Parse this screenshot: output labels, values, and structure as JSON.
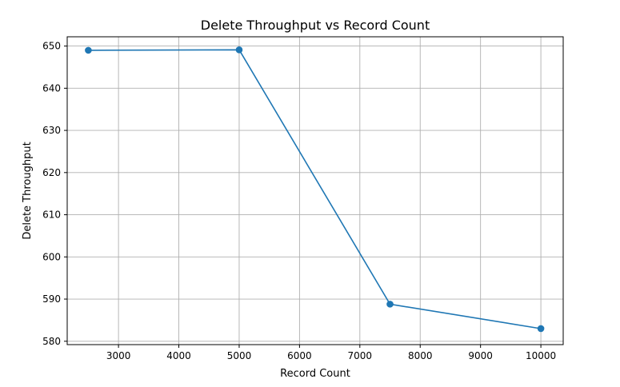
{
  "chart_data": {
    "type": "line",
    "title": "Delete Throughput vs Record Count",
    "xlabel": "Record Count",
    "ylabel": "Delete Throughput",
    "xlim": [
      2150,
      10370
    ],
    "ylim": [
      579.2,
      652.2
    ],
    "xticks": [
      3000,
      4000,
      5000,
      6000,
      7000,
      8000,
      9000,
      10000
    ],
    "yticks": [
      580,
      590,
      600,
      610,
      620,
      630,
      640,
      650
    ],
    "grid": true,
    "series": [
      {
        "x": [
          2500,
          5000,
          7500,
          10000
        ],
        "y": [
          649.0,
          649.1,
          588.8,
          583.0
        ],
        "color": "#1f77b4",
        "marker": "circle"
      }
    ]
  }
}
